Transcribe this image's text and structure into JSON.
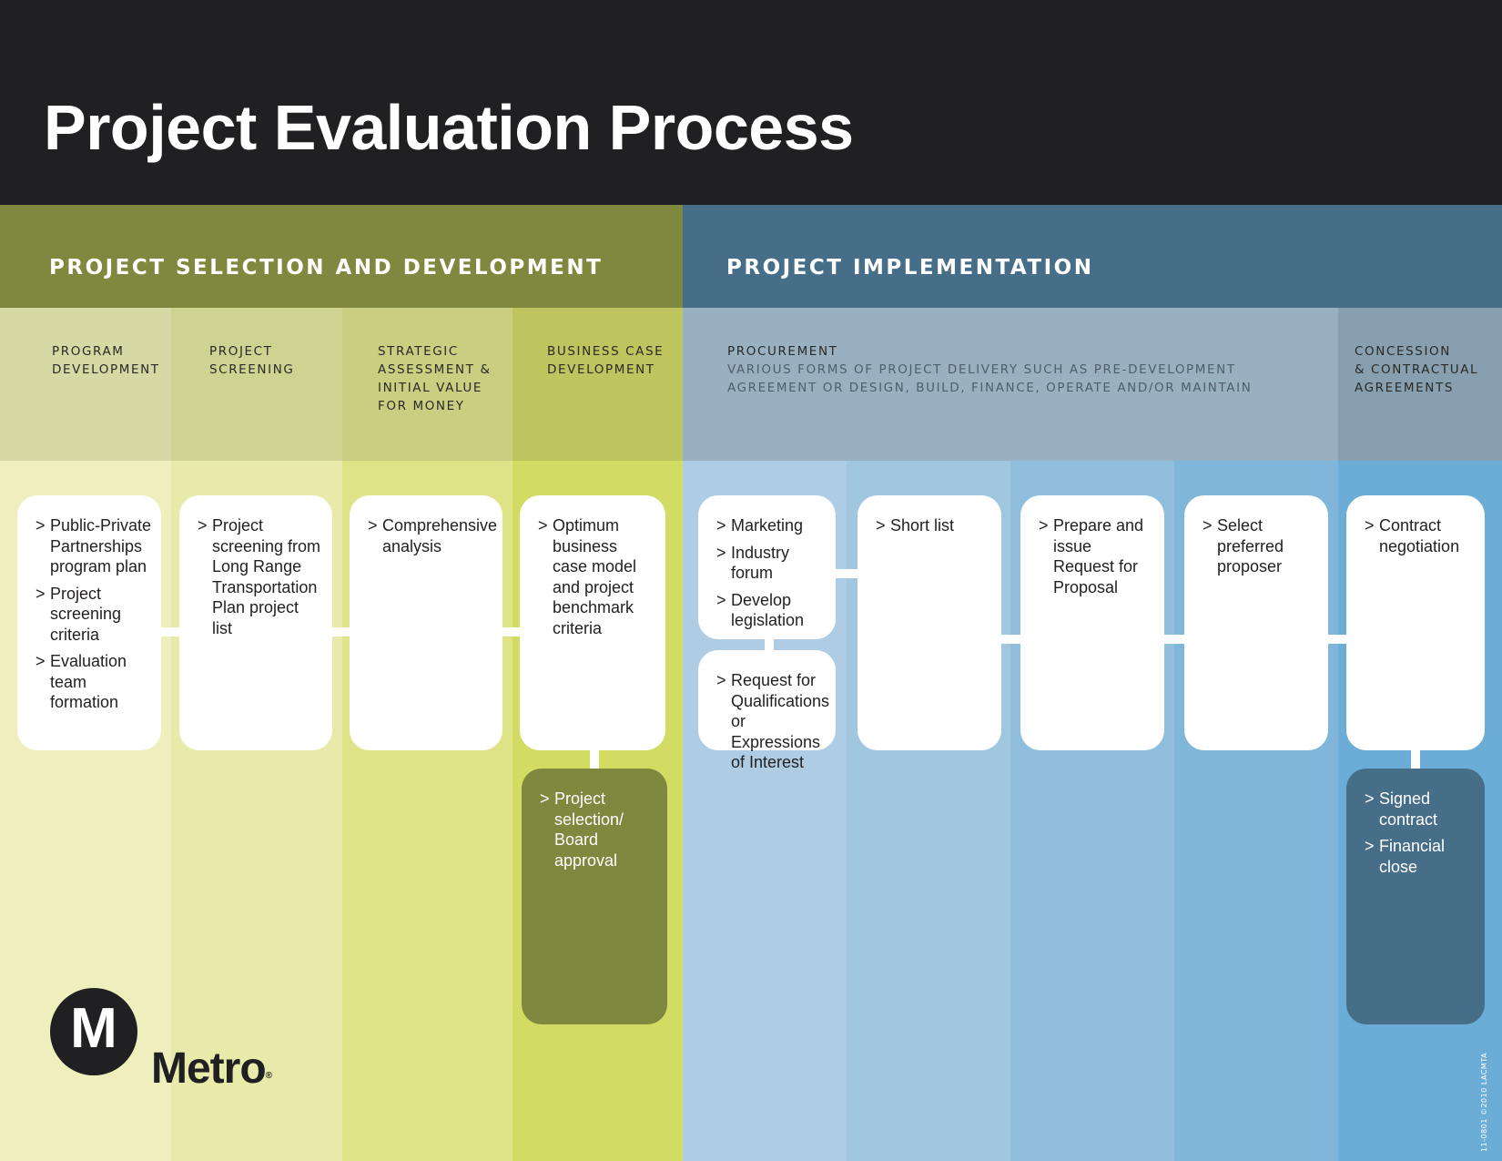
{
  "title": "Project Evaluation Process",
  "phases": {
    "selection": "PROJECT SELECTION AND DEVELOPMENT",
    "implementation": "PROJECT IMPLEMENTATION"
  },
  "stages": {
    "program_development": [
      "PROGRAM",
      "DEVELOPMENT"
    ],
    "project_screening": [
      "PROJECT",
      "SCREENING"
    ],
    "strategic_assessment": [
      "STRATEGIC",
      "ASSESSMENT &",
      "INITIAL VALUE",
      "FOR MONEY"
    ],
    "business_case": [
      "BUSINESS CASE",
      "DEVELOPMENT"
    ],
    "procurement": {
      "title": "PROCUREMENT",
      "subtitle": [
        "VARIOUS FORMS OF PROJECT DELIVERY SUCH AS PRE-DEVELOPMENT",
        "AGREEMENT OR DESIGN, BUILD, FINANCE, OPERATE AND/OR MAINTAIN"
      ]
    },
    "concession": [
      "CONCESSION",
      "& CONTRACTUAL",
      "AGREEMENTS"
    ]
  },
  "cards": {
    "program_development": [
      "Public-Private Partnerships program plan",
      "Project screening criteria",
      "Evaluation team formation"
    ],
    "project_screening": [
      "Project screening from Long Range Transportation Plan project list"
    ],
    "strategic_assessment": [
      "Comprehensive analysis"
    ],
    "business_case": [
      "Optimum business case model and project benchmark criteria"
    ],
    "board_approval": [
      "Project selection/ Board approval"
    ],
    "marketing": [
      "Marketing",
      "Industry forum",
      "Develop legislation"
    ],
    "rfq": [
      "Request for Qualifications or Expressions of Interest"
    ],
    "short_list": [
      "Short list"
    ],
    "rfp": [
      "Prepare and issue Request for Proposal"
    ],
    "select_proposer": [
      "Select preferred proposer"
    ],
    "contract_negotiation": [
      "Contract negotiation"
    ],
    "signed_contract": [
      "Signed contract",
      "Financial close"
    ]
  },
  "logo": {
    "mark": "M",
    "word": "Metro",
    "reg": "®"
  },
  "credit": "11-0801 ©2010 LACMTA",
  "colors": {
    "header": "#201f21",
    "phase_selection": "#80883f",
    "phase_implementation": "#476e89",
    "dark_olive_card": "#80883f",
    "dark_blue_card": "#476e89"
  }
}
